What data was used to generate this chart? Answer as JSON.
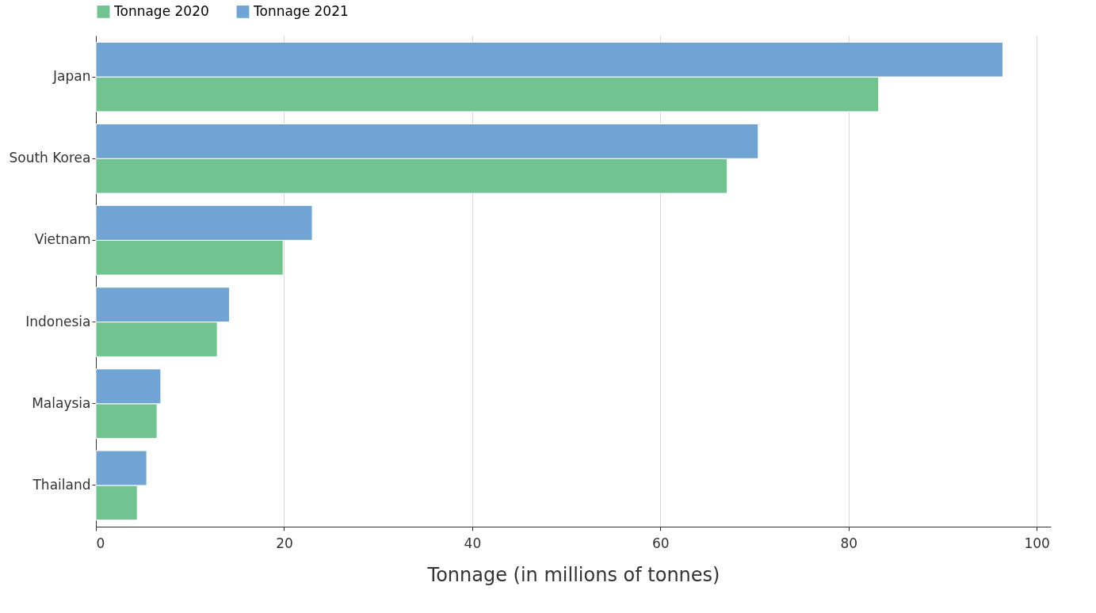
{
  "chart_data": {
    "type": "bar",
    "orientation": "horizontal",
    "xlabel": "Tonnage (in millions of tonnes)",
    "categories": [
      "Japan",
      "South Korea",
      "Vietnam",
      "Indonesia",
      "Malaysia",
      "Thailand"
    ],
    "series": [
      {
        "name": "Tonnage 2020",
        "color": "#71c48f",
        "values": [
          83.2,
          67.1,
          19.9,
          12.9,
          6.5,
          4.4
        ]
      },
      {
        "name": "Tonnage 2021",
        "color": "#70a4d3",
        "values": [
          96.4,
          70.4,
          23.0,
          14.2,
          6.9,
          5.4
        ]
      }
    ],
    "xlim": [
      0,
      101.5
    ],
    "xticks": [
      0,
      20,
      40,
      60,
      80,
      100
    ],
    "grid": "x",
    "legend": "top"
  }
}
